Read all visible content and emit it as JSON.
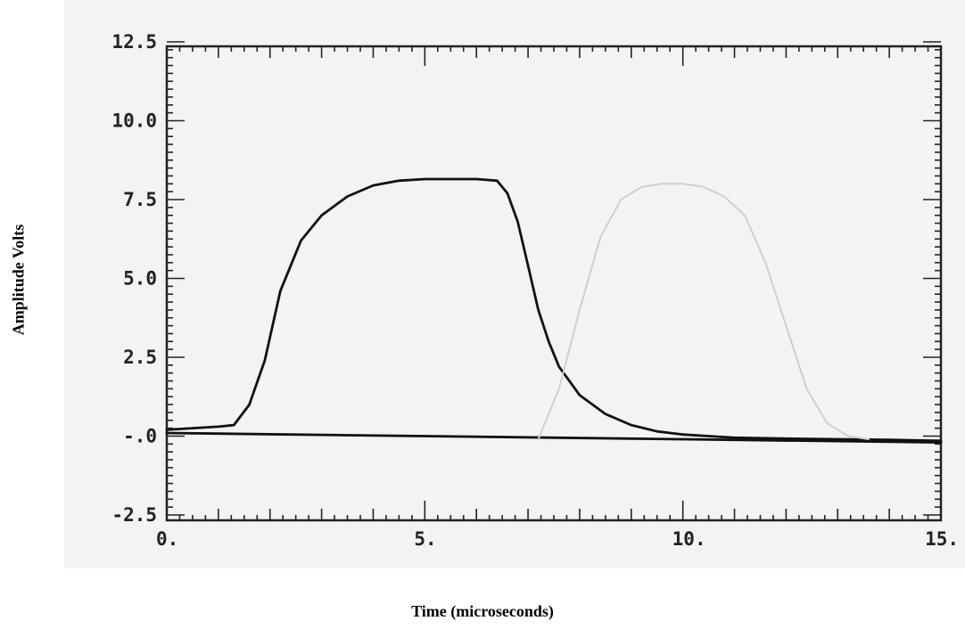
{
  "chart_data": {
    "type": "line",
    "xlabel": "Time (microseconds)",
    "ylabel": "Amplitude Volts",
    "xlim": [
      0,
      15
    ],
    "ylim": [
      -2.5,
      12.5
    ],
    "x_tick_labels": [
      "0.",
      "5.",
      "10.",
      "15."
    ],
    "x_tick_values": [
      0,
      5,
      10,
      15
    ],
    "y_tick_labels": [
      "12.5",
      "10.0",
      "7.5",
      "5.0",
      "2.5",
      "-.0",
      "-2.5"
    ],
    "y_tick_values": [
      12.5,
      10.0,
      7.5,
      5.0,
      2.5,
      0.0,
      -2.5
    ],
    "grid": false,
    "series": [
      {
        "color": "#111111",
        "x": [
          0,
          0.5,
          1.0,
          1.3,
          1.6,
          1.9,
          2.2,
          2.6,
          3.0,
          3.5,
          4.0,
          4.5,
          5.0,
          5.5,
          6.0,
          6.4,
          6.6,
          6.8,
          7.0,
          7.2,
          7.4,
          7.6,
          8.0,
          8.5,
          9.0,
          9.5,
          10.0,
          10.5,
          11.0,
          12.0,
          13.0,
          14.0,
          15.0
        ],
        "y": [
          0.2,
          0.25,
          0.3,
          0.35,
          1.0,
          2.4,
          4.6,
          6.2,
          7.0,
          7.6,
          7.95,
          8.1,
          8.15,
          8.15,
          8.15,
          8.1,
          7.7,
          6.8,
          5.4,
          4.0,
          3.0,
          2.2,
          1.3,
          0.7,
          0.35,
          0.15,
          0.05,
          0.0,
          -0.05,
          -0.08,
          -0.1,
          -0.12,
          -0.15
        ]
      },
      {
        "color": "#111111",
        "x": [
          0,
          5,
          10,
          15
        ],
        "y": [
          0.1,
          0.0,
          -0.1,
          -0.2
        ]
      },
      {
        "color": "#cfcfcf",
        "x": [
          7.2,
          7.6,
          8.0,
          8.4,
          8.8,
          9.2,
          9.6,
          10.0,
          10.4,
          10.8,
          11.2,
          11.6,
          12.0,
          12.4,
          12.8,
          13.2,
          13.6
        ],
        "y": [
          -0.1,
          1.5,
          4.0,
          6.3,
          7.5,
          7.9,
          8.0,
          8.0,
          7.9,
          7.6,
          7.0,
          5.5,
          3.5,
          1.5,
          0.4,
          0.0,
          -0.1
        ]
      }
    ]
  }
}
